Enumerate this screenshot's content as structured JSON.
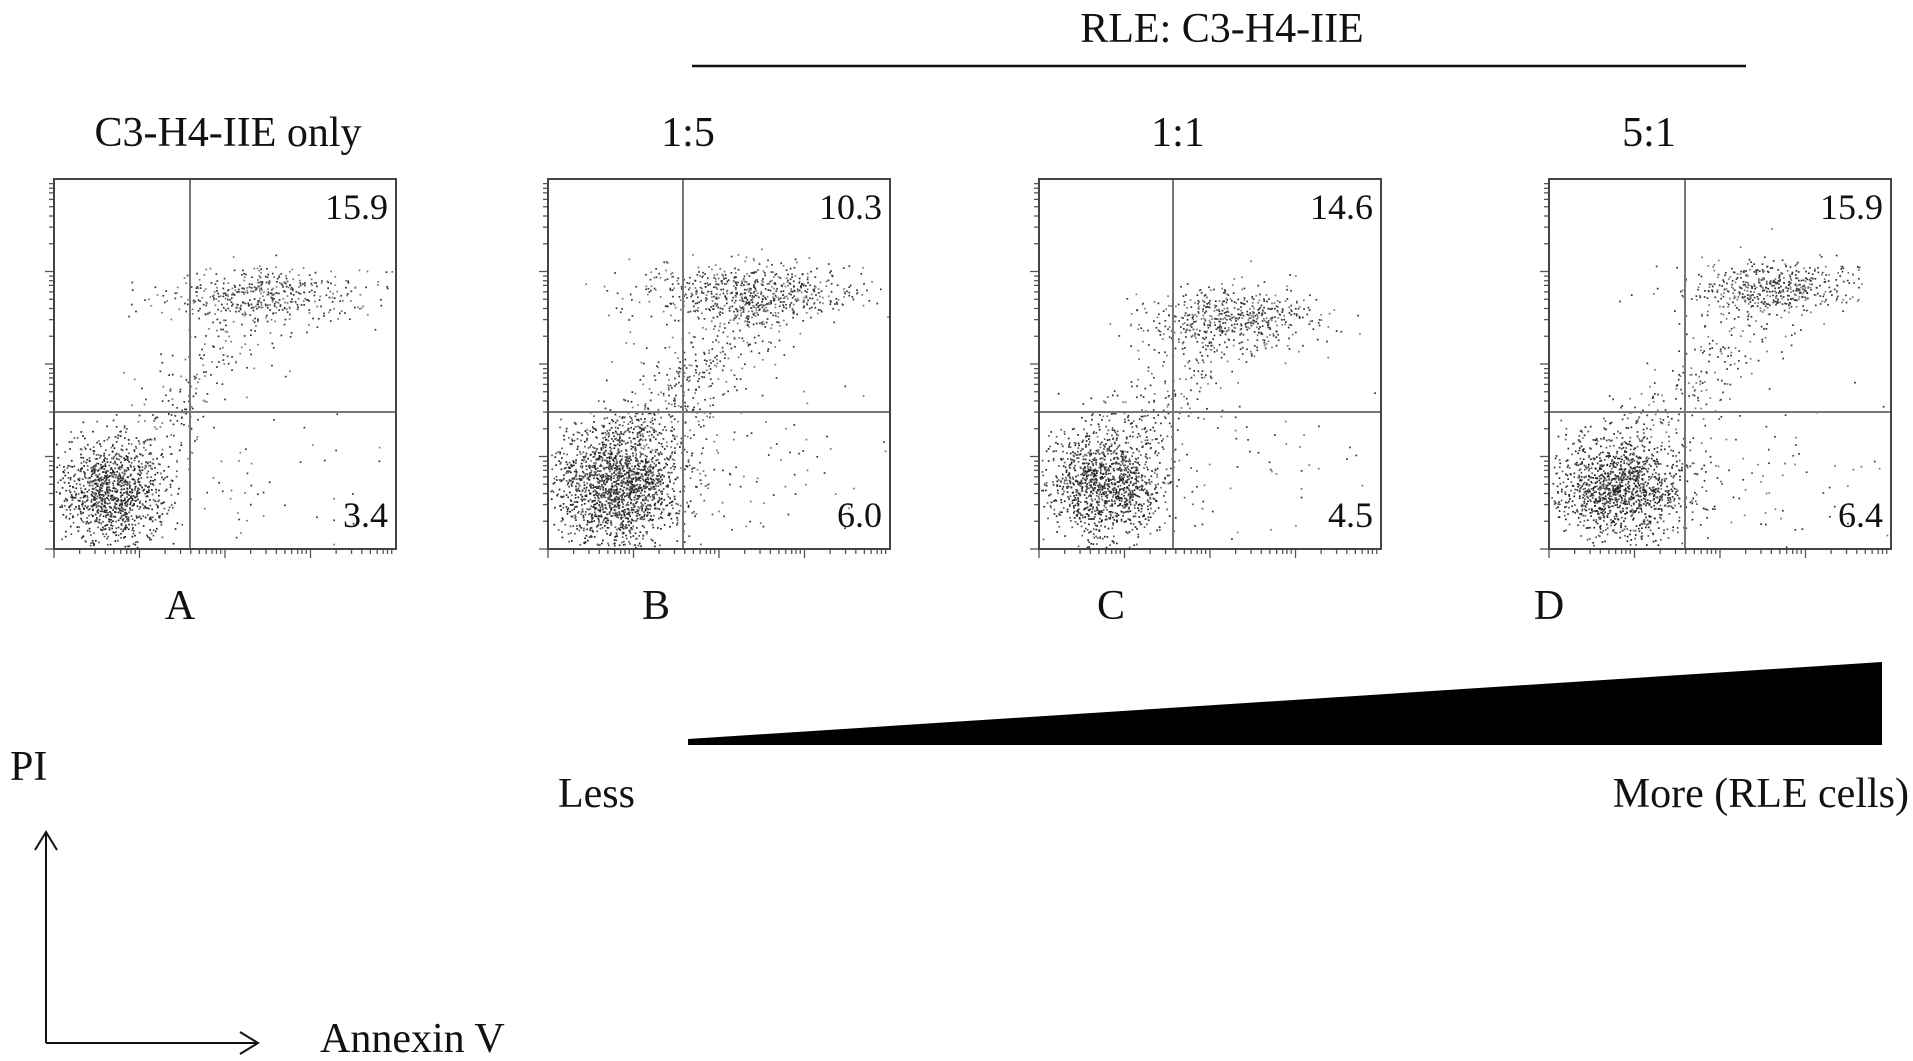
{
  "header": {
    "group_label": "RLE: C3-H4-IIE"
  },
  "chart_data": [
    {
      "type": "scatter",
      "panel": "A",
      "title": "C3-H4-IIE only",
      "quadrant_values": {
        "upper_right": "15.9",
        "lower_right": "3.4"
      },
      "clusters": [
        {
          "region": "lower-left",
          "cx": 0.17,
          "cy": 0.155,
          "sx": 0.085,
          "sy": 0.07,
          "n": 1100
        },
        {
          "region": "upper-right",
          "cx": 0.62,
          "cy": 0.69,
          "sx": 0.15,
          "sy": 0.035,
          "n": 420
        },
        {
          "region": "transition",
          "cx": 0.38,
          "cy": 0.45,
          "sx": 0.15,
          "sy": 0.17,
          "n": 260
        },
        {
          "region": "lower-right",
          "cx": 0.6,
          "cy": 0.18,
          "sx": 0.2,
          "sy": 0.1,
          "n": 50
        }
      ]
    },
    {
      "type": "scatter",
      "panel": "B",
      "title": "1:5",
      "quadrant_values": {
        "upper_right": "10.3",
        "lower_right": "6.0"
      },
      "clusters": [
        {
          "region": "lower-left",
          "cx": 0.2,
          "cy": 0.17,
          "sx": 0.095,
          "sy": 0.08,
          "n": 1700
        },
        {
          "region": "upper-right",
          "cx": 0.6,
          "cy": 0.695,
          "sx": 0.17,
          "sy": 0.04,
          "n": 620
        },
        {
          "region": "transition",
          "cx": 0.36,
          "cy": 0.45,
          "sx": 0.14,
          "sy": 0.17,
          "n": 520
        },
        {
          "region": "lower-right",
          "cx": 0.55,
          "cy": 0.2,
          "sx": 0.2,
          "sy": 0.12,
          "n": 120
        }
      ]
    },
    {
      "type": "scatter",
      "panel": "C",
      "title": "1:1",
      "quadrant_values": {
        "upper_right": "14.6",
        "lower_right": "4.5"
      },
      "clusters": [
        {
          "region": "lower-left",
          "cx": 0.19,
          "cy": 0.18,
          "sx": 0.09,
          "sy": 0.075,
          "n": 1200
        },
        {
          "region": "upper-right",
          "cx": 0.57,
          "cy": 0.62,
          "sx": 0.14,
          "sy": 0.04,
          "n": 480
        },
        {
          "region": "transition",
          "cx": 0.42,
          "cy": 0.45,
          "sx": 0.16,
          "sy": 0.16,
          "n": 300
        },
        {
          "region": "lower-right",
          "cx": 0.6,
          "cy": 0.2,
          "sx": 0.2,
          "sy": 0.1,
          "n": 60
        }
      ]
    },
    {
      "type": "scatter",
      "panel": "D",
      "title": "5:1",
      "quadrant_values": {
        "upper_right": "15.9",
        "lower_right": "6.4"
      },
      "clusters": [
        {
          "region": "lower-left",
          "cx": 0.2,
          "cy": 0.17,
          "sx": 0.1,
          "sy": 0.07,
          "n": 1300
        },
        {
          "region": "upper-right",
          "cx": 0.65,
          "cy": 0.71,
          "sx": 0.13,
          "sy": 0.035,
          "n": 470
        },
        {
          "region": "transition",
          "cx": 0.42,
          "cy": 0.45,
          "sx": 0.17,
          "sy": 0.17,
          "n": 280
        },
        {
          "region": "lower-right",
          "cx": 0.6,
          "cy": 0.2,
          "sx": 0.2,
          "sy": 0.11,
          "n": 80
        }
      ]
    }
  ],
  "gradient": {
    "less_label": "Less",
    "more_label": "More (RLE cells)"
  },
  "axes": {
    "y_label": "PI",
    "x_label": "Annexin V"
  },
  "colors": {
    "ink": "#111111",
    "quadrant_line": "#777777",
    "dot": "#222222"
  }
}
